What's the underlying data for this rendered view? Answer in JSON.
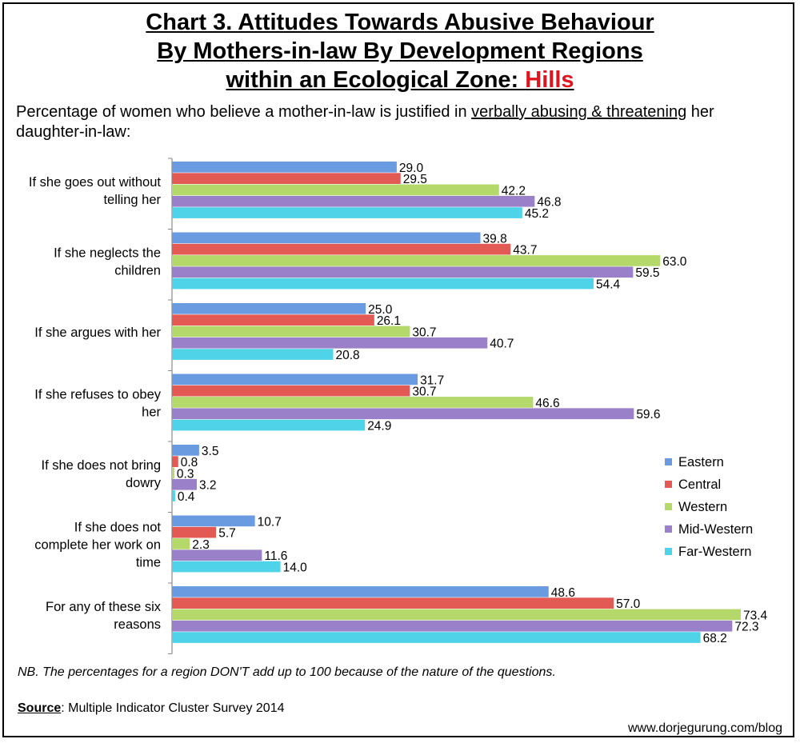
{
  "title": {
    "line1": "Chart 3. Attitudes Towards Abusive Behaviour",
    "line2": "By Mothers-in-law By Development Regions",
    "line3_prefix": "within an Ecological Zone: ",
    "line3_highlight": "Hills"
  },
  "subtitle": {
    "part1": "Percentage of women who believe a mother-in-law is justified in ",
    "underlined": "verbally abusing & threatening",
    "part2": " her daughter-in-law:"
  },
  "note": "NB. The percentages for a region DON'T add up to 100 because of the nature of the questions.",
  "source": {
    "label": "Source",
    "text": ": Multiple Indicator Cluster Survey 2014"
  },
  "url": "www.dorjegurung.com/blog",
  "colors": {
    "title_highlight": "#e0141e"
  },
  "chart_data": {
    "type": "bar",
    "orientation": "horizontal",
    "categories": [
      [
        "If she goes out without",
        "telling her"
      ],
      [
        "If she neglects the",
        "children"
      ],
      [
        "If she argues with her"
      ],
      [
        "If she refuses to obey",
        "her"
      ],
      [
        "If she does not bring",
        "dowry"
      ],
      [
        "If she does not",
        "complete her work on",
        "time"
      ],
      [
        "For any of these six",
        "reasons"
      ]
    ],
    "series": [
      {
        "name": "Eastern",
        "color": "#6a9be0",
        "values": [
          29.0,
          39.8,
          25.0,
          31.7,
          3.5,
          10.7,
          48.6
        ]
      },
      {
        "name": "Central",
        "color": "#e35a55",
        "values": [
          29.5,
          43.7,
          26.1,
          30.7,
          0.8,
          5.7,
          57.0
        ]
      },
      {
        "name": "Western",
        "color": "#b5d86b",
        "values": [
          42.2,
          63.0,
          30.7,
          46.6,
          0.3,
          2.3,
          73.4
        ]
      },
      {
        "name": "Mid-Western",
        "color": "#9a80c9",
        "values": [
          46.8,
          59.5,
          40.7,
          59.6,
          3.2,
          11.6,
          72.3
        ]
      },
      {
        "name": "Far-Western",
        "color": "#4fd3e8",
        "values": [
          45.2,
          54.4,
          20.8,
          24.9,
          0.4,
          14.0,
          68.2
        ]
      }
    ],
    "xlim": [
      0,
      73.4
    ],
    "legend": "right",
    "grid": false
  }
}
